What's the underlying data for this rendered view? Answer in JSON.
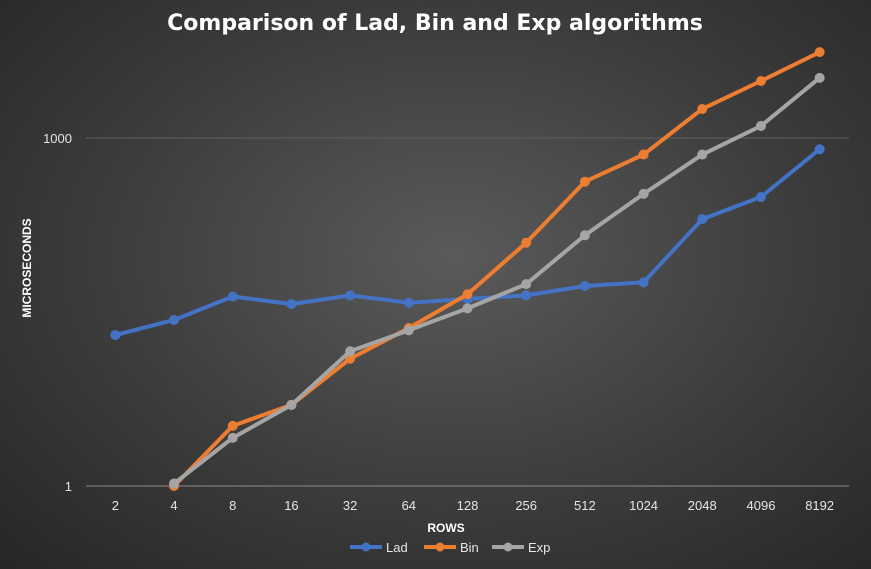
{
  "chart_data": {
    "type": "line",
    "title": "Comparison of Lad, Bin and Exp algorithms",
    "xlabel": "ROWS",
    "ylabel": "MICROSECONDS",
    "y_scale": "log",
    "ylim": [
      1,
      3000
    ],
    "y_ticks": [
      "1",
      "1000"
    ],
    "y_tick_values": [
      1,
      1000
    ],
    "categories": [
      "2",
      "4",
      "8",
      "16",
      "32",
      "64",
      "128",
      "256",
      "512",
      "1024",
      "2048",
      "4096",
      "8192"
    ],
    "grid": true,
    "legend": "bottom",
    "series": [
      {
        "name": "Lad",
        "color": "#4472c4",
        "values": [
          20,
          27,
          43,
          37,
          44,
          38,
          41,
          44,
          53,
          57,
          200,
          310,
          800
        ]
      },
      {
        "name": "Bin",
        "color": "#ed7d31",
        "values": [
          null,
          1,
          3.3,
          5,
          12.5,
          23,
          45,
          125,
          420,
          720,
          1780,
          3100,
          5500
        ]
      },
      {
        "name": "Exp",
        "color": "#a5a5a5",
        "values": [
          null,
          1.05,
          2.6,
          5,
          14.5,
          22,
          34,
          55,
          145,
          330,
          720,
          1270,
          3300
        ]
      }
    ]
  }
}
